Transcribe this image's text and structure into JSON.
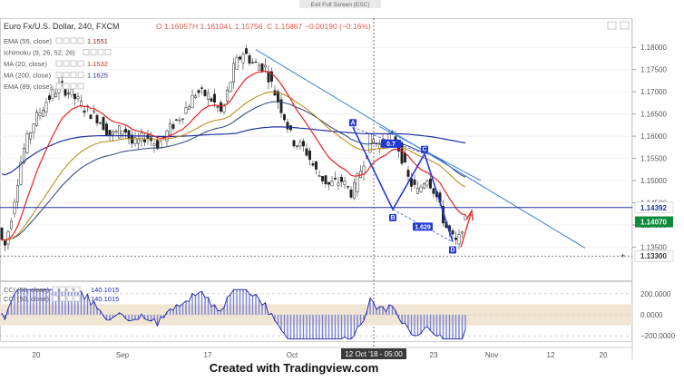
{
  "header": {
    "exit_fullscreen": "Exit Full Screen (ESC)",
    "symbol": "Euro Fx/U.S. Dollar, 240, FXCM",
    "open": "O 1.16057",
    "high": "H 1.16104",
    "low": "L 1.15756",
    "close": "C 1.15867",
    "change": "−0.00190 (−0.16%)"
  },
  "indicators": [
    {
      "label": "EMA (55, close)",
      "value": "1.1551",
      "color": "#8a1a1a"
    },
    {
      "label": "Ichimoku (9, 26, 52, 26)",
      "value": "",
      "color": "#8fb3d9"
    },
    {
      "label": "MA (20, close)",
      "value": "1.1532",
      "color": "#e52222"
    },
    {
      "label": "MA (200, close)",
      "value": "1.1625",
      "color": "#2230a0"
    },
    {
      "label": "EMA (89, close)",
      "value": "",
      "color": "#b8860b"
    }
  ],
  "cci_legend": [
    {
      "label": "CCI (50, close)",
      "value": "140.1015"
    },
    {
      "label": "CCI (50, close)",
      "value": "140.1015"
    }
  ],
  "price_axis": {
    "ticks": [
      "1.18000",
      "1.17500",
      "1.17000",
      "1.16500",
      "1.16000",
      "1.15500",
      "1.15000",
      "1.14500",
      "1.14000",
      "1.13500"
    ],
    "badges": [
      {
        "text": "1.14392",
        "color": "#ffffff",
        "text_color": "#2230a0"
      },
      {
        "text": "1.14070",
        "color": "#0c8a3c",
        "text_color": "#ffffff"
      },
      {
        "text": "1.13300",
        "color": "#ffffff",
        "text_color": "#333333"
      }
    ]
  },
  "cci_axis": {
    "ticks": [
      "200.0000",
      "0.0000",
      "−200.0000"
    ]
  },
  "time_axis": {
    "ticks": [
      "20",
      "Sep",
      "17",
      "Oct",
      "23",
      "Nov",
      "12",
      "20"
    ],
    "crosshair_label": "12 Oct '18 - 05:00"
  },
  "pattern": {
    "points": [
      "A",
      "B",
      "C",
      "D"
    ],
    "ratios": [
      "0.7",
      "1.629"
    ]
  },
  "footer": "Created with Tradingview.com",
  "chart_data": [
    {
      "type": "candlestick",
      "title": "Euro Fx/U.S. Dollar, 240, FXCM",
      "ylim": [
        1.131,
        1.182
      ],
      "horizontal_lines": [
        1.14392,
        1.133
      ],
      "note": "EUR/USD 4H candles with moving averages, two downtrend lines and an ABCD harmonic pattern",
      "x": [
        "20",
        "Sep",
        "17",
        "Oct",
        "23",
        "Nov",
        "12",
        "20"
      ],
      "series": [
        {
          "name": "EUR/USD",
          "approx_path": [
            [
              1.137,
              1.135,
              1.14,
              1.15,
              1.158,
              1.164,
              1.17,
              1.167,
              1.16,
              1.156,
              1.163,
              1.158,
              1.155,
              1.165,
              1.172,
              1.169,
              1.167,
              1.178,
              1.177,
              1.174,
              1.165,
              1.158,
              1.15,
              1.148,
              1.152,
              1.145,
              1.153,
              1.16,
              1.157,
              1.15,
              1.148,
              1.153,
              1.145,
              1.142,
              1.148,
              1.136,
              1.139,
              1.1407
            ]
          ]
        },
        {
          "name": "MA (20, close)",
          "value": 1.1532
        },
        {
          "name": "EMA (55, close)",
          "value": 1.1551
        },
        {
          "name": "MA (200, close)",
          "value": 1.1625
        }
      ]
    },
    {
      "type": "area",
      "title": "CCI (50, close)",
      "ylim": [
        -250,
        250
      ],
      "reference_lines": [
        200,
        0,
        -200
      ],
      "series": [
        {
          "name": "CCI (50, close)",
          "value": 140.1015
        }
      ]
    }
  ]
}
